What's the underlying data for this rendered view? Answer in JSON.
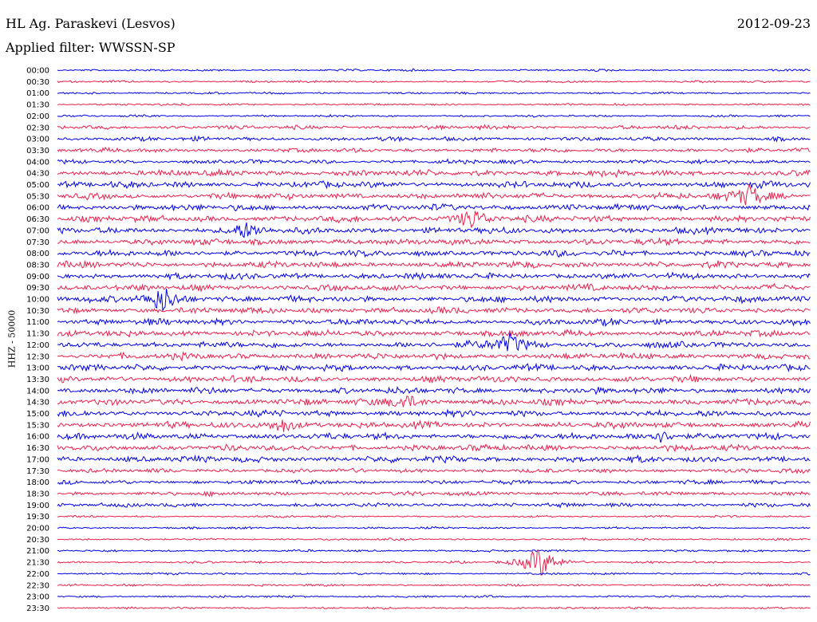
{
  "header": {
    "station": "HL Ag. Paraskevi (Lesvos)",
    "date": "2012-09-23",
    "filter": "Applied filter: WWSSN-SP"
  },
  "chart_data": {
    "type": "line",
    "ylabel": "HHZ - 50000",
    "times": [
      "00:00",
      "00:30",
      "01:00",
      "01:30",
      "02:00",
      "02:30",
      "03:00",
      "03:30",
      "04:00",
      "04:30",
      "05:00",
      "05:30",
      "06:00",
      "06:30",
      "07:00",
      "07:30",
      "08:00",
      "08:30",
      "09:00",
      "09:30",
      "10:00",
      "10:30",
      "11:00",
      "11:30",
      "12:00",
      "12:30",
      "13:00",
      "13:30",
      "14:00",
      "14:30",
      "15:00",
      "15:30",
      "16:00",
      "16:30",
      "17:00",
      "17:30",
      "18:00",
      "18:30",
      "19:00",
      "19:30",
      "20:00",
      "20:30",
      "21:00",
      "21:30",
      "22:00",
      "22:30",
      "23:00",
      "23:30"
    ],
    "noise_level": [
      1,
      1,
      1,
      1,
      1,
      2,
      2,
      2,
      2,
      3,
      3,
      3,
      3,
      3,
      3,
      3,
      3,
      3,
      3,
      3,
      3,
      3,
      3,
      3,
      3,
      3,
      3,
      3,
      3,
      3,
      3,
      3,
      3,
      3,
      3,
      2,
      2,
      2,
      2,
      1,
      1,
      1,
      1,
      1,
      1,
      1,
      1,
      1
    ],
    "colors": {
      "even": "#0000ee",
      "odd": "#ee1e4b"
    },
    "events": [
      {
        "row": 11,
        "x": 0.92,
        "amp": 2.2
      },
      {
        "row": 13,
        "x": 0.55,
        "amp": 2.2
      },
      {
        "row": 14,
        "x": 0.25,
        "amp": 1.4
      },
      {
        "row": 20,
        "x": 0.14,
        "amp": 2.6
      },
      {
        "row": 24,
        "x": 0.6,
        "amp": 2.2
      },
      {
        "row": 29,
        "x": 0.46,
        "amp": 1.6
      },
      {
        "row": 31,
        "x": 0.3,
        "amp": 1.4
      },
      {
        "row": 32,
        "x": 0.8,
        "amp": 1.2
      },
      {
        "row": 43,
        "x": 0.64,
        "amp": 3.5
      }
    ]
  }
}
